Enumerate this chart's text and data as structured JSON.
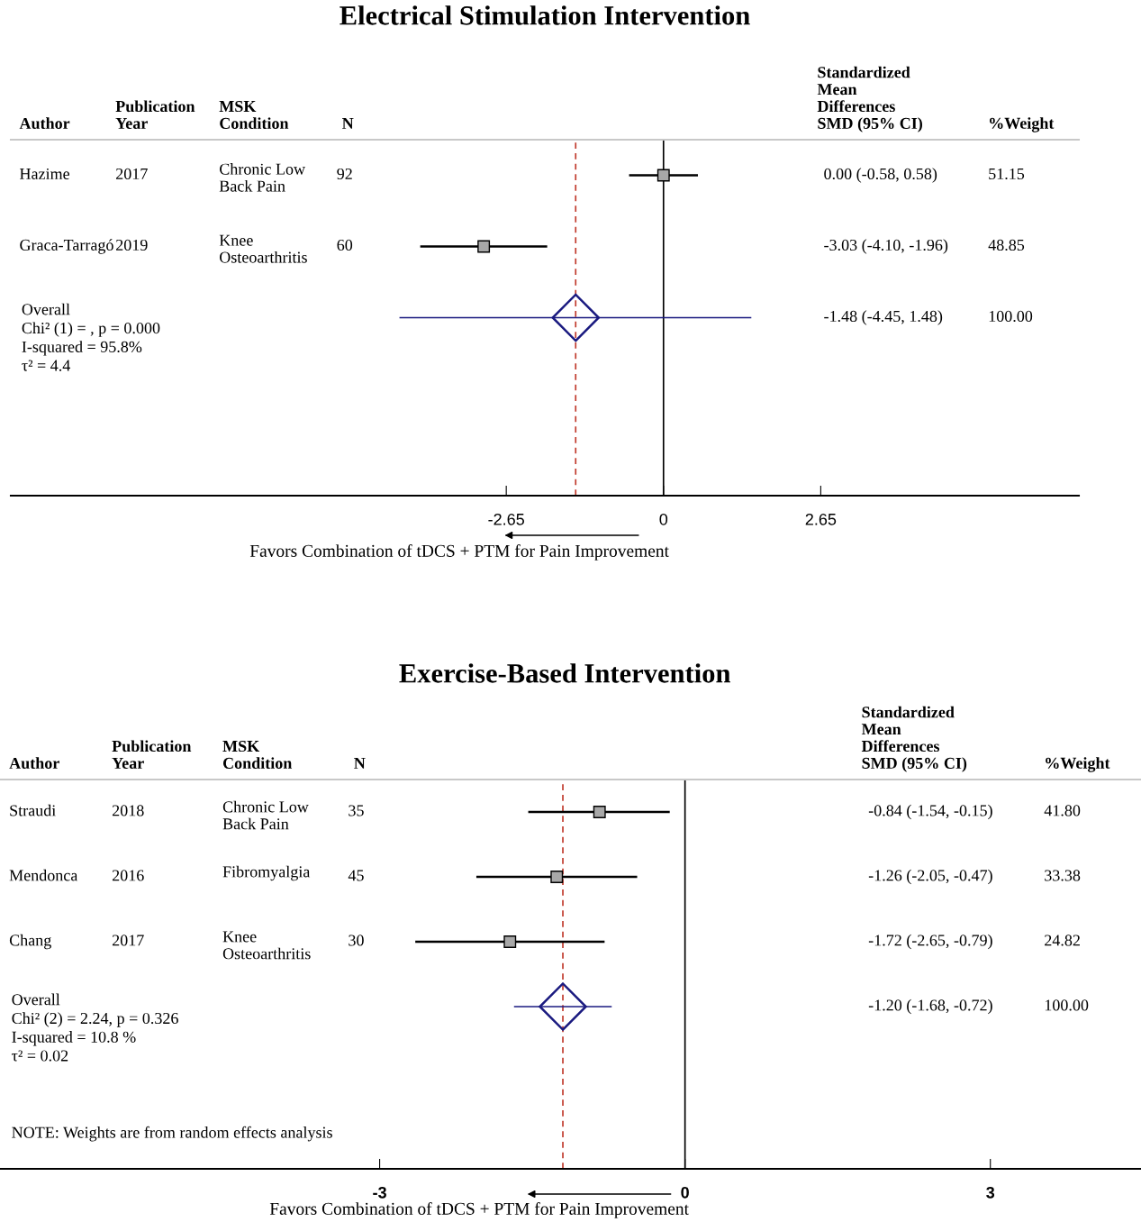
{
  "chart_data": [
    {
      "type": "scatter",
      "title": "Electrical Stimulation Intervention",
      "xlabel": "Favors Combination of tDCS + PTM for Pain Improvement",
      "orientation": "horizontal",
      "categories": [
        "Hazime",
        "Graca-Tarragó",
        null,
        null,
        null
      ],
      "series": [
        {
          "marker": "square",
          "color": "#000000",
          "values": [
            0.0,
            -3.03,
            null,
            null,
            null
          ],
          "errors": [
            [
              -0.58,
              0.58
            ],
            [
              -4.1,
              -1.96
            ],
            null,
            null,
            null
          ]
        },
        {
          "marker": "diamond",
          "color": "#1a1a80",
          "values": [
            null,
            null,
            -1.48,
            null,
            null
          ],
          "errors": [
            null,
            null,
            [
              -4.45,
              1.48
            ],
            null,
            null
          ]
        }
      ],
      "xlim": [
        -11,
        7
      ],
      "xticks": [
        -2.65,
        0,
        2.65
      ],
      "tick_labels": "x",
      "grid": false,
      "legend": false,
      "ref_lines": [
        {
          "axis": "x",
          "value": -1.48,
          "color": "#c0392b",
          "line_style": "dashed"
        },
        {
          "axis": "x",
          "value": 0,
          "color": "#000000",
          "line_style": "solid"
        }
      ],
      "annotations": [
        "Author",
        "Publication\nYear",
        "MSK\nCondition",
        "N",
        "Standardized\nMean\nDifferences\nSMD (95% CI)",
        "%Weight",
        "2017",
        "Chronic Low\nBack Pain",
        "92",
        "0.00 (-0.58, 0.58)",
        "51.15",
        "2019",
        "Knee\nOsteoarthritis",
        "60",
        "-3.03 (-4.10, -1.96)",
        "48.85",
        "-1.48 (-4.45, 1.48)",
        "100.00",
        "Overall\nChi² (1) = , p = 0.000\nI-squared = 95.8%\nτ² = 4.4"
      ]
    },
    {
      "type": "scatter",
      "title": "Exercise-Based Intervention",
      "xlabel": "Favors Combination of tDCS + PTM for Pain Improvement",
      "orientation": "horizontal",
      "categories": [
        "Straudi",
        "Mendonca",
        "Chang",
        null,
        null,
        null
      ],
      "series": [
        {
          "marker": "square",
          "color": "#000000",
          "values": [
            -0.84,
            -1.26,
            -1.72,
            null,
            null,
            null
          ],
          "errors": [
            [
              -1.54,
              -0.15
            ],
            [
              -2.05,
              -0.47
            ],
            [
              -2.65,
              -0.79
            ],
            null,
            null,
            null
          ]
        },
        {
          "marker": "diamond",
          "color": "#1a1a80",
          "values": [
            null,
            null,
            null,
            -1.2,
            null,
            null
          ],
          "errors": [
            null,
            null,
            null,
            [
              -1.68,
              -0.72
            ],
            null,
            null
          ]
        }
      ],
      "xlim": [
        -6.73,
        4.48
      ],
      "xticks": [
        -3,
        0,
        3
      ],
      "tick_labels": "x",
      "grid": false,
      "legend": false,
      "ref_lines": [
        {
          "axis": "x",
          "value": -1.2,
          "color": "#c0392b",
          "line_style": "dashed"
        },
        {
          "axis": "x",
          "value": 0,
          "color": "#000000",
          "line_style": "solid"
        }
      ],
      "annotations": [
        "Author",
        "Publication\nYear",
        "MSK\nCondition",
        "N",
        "Standardized\nMean\nDifferences\nSMD (95% CI)",
        "%Weight",
        "2018",
        "Chronic Low\nBack Pain",
        "35",
        "-0.84 (-1.54, -0.15)",
        "41.80",
        "2016",
        "Fibromyalgia",
        "45",
        "-1.26 (-2.05, -0.47)",
        "33.38",
        "2017",
        "Knee\nOsteoarthritis",
        "30",
        "-1.72 (-2.65, -0.79)",
        "24.82",
        "-1.20 (-1.68, -0.72)",
        "100.00",
        "Overall\nChi² (2) = 2.24, p = 0.326\nI-squared = 10.8 %\nτ² = 0.02",
        "NOTE: Weights are from random effects analysis"
      ]
    }
  ]
}
